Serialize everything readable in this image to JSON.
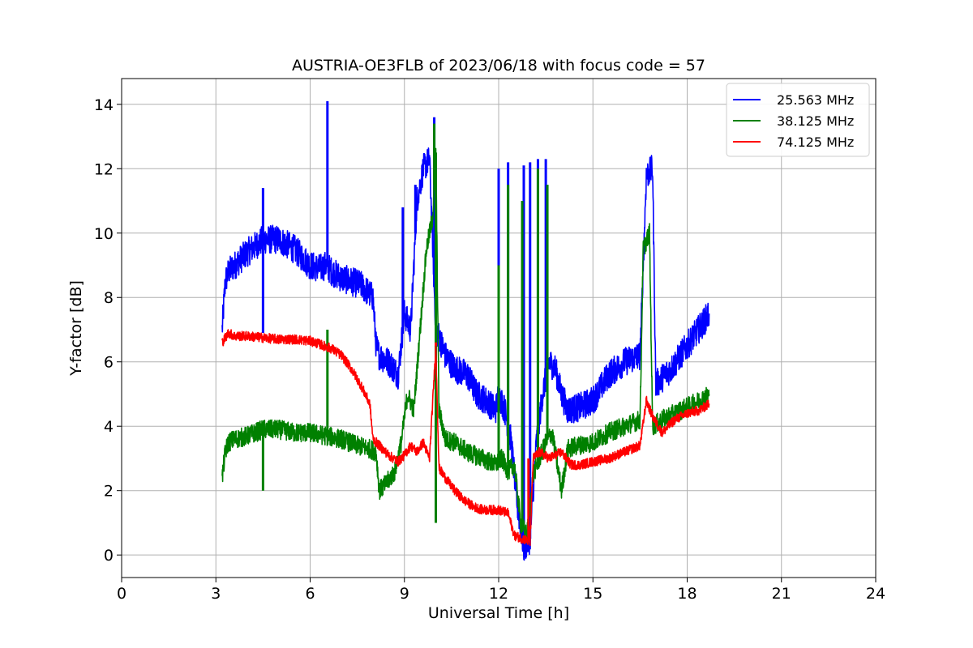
{
  "chart_data": {
    "type": "line",
    "title": "AUSTRIA-OE3FLB of 2023/06/18 with focus code = 57",
    "xlabel": "Universal Time [h]",
    "ylabel": "Y-factor [dB]",
    "xlim": [
      0,
      24
    ],
    "ylim": [
      -0.7,
      14.8
    ],
    "xticks": [
      0,
      3,
      6,
      9,
      12,
      15,
      18,
      21,
      24
    ],
    "yticks": [
      0,
      2,
      4,
      6,
      8,
      10,
      12,
      14
    ],
    "grid": true,
    "legend_position": "top-right",
    "series": [
      {
        "name": "25.563 MHz",
        "color": "#0000ff",
        "noise": 0.45,
        "x": [
          3.2,
          3.3,
          3.4,
          3.6,
          4.0,
          4.5,
          5.0,
          5.5,
          6.0,
          6.3,
          6.5,
          6.7,
          7.0,
          7.3,
          7.6,
          7.9,
          8.0,
          8.1,
          8.2,
          8.5,
          8.8,
          9.0,
          9.2,
          9.4,
          9.6,
          9.8,
          10.0,
          10.1,
          10.3,
          10.6,
          11.0,
          11.3,
          11.6,
          11.9,
          12.0,
          12.2,
          12.4,
          12.6,
          12.8,
          13.0,
          13.2,
          13.4,
          13.6,
          13.8,
          14.0,
          14.2,
          14.6,
          15.0,
          15.5,
          16.0,
          16.5,
          16.7,
          16.9,
          17.0,
          17.5,
          18.0,
          18.5,
          18.7
        ],
        "y": [
          7.0,
          8.5,
          8.8,
          9.0,
          9.4,
          9.8,
          9.8,
          9.5,
          9.0,
          8.9,
          9.0,
          8.8,
          8.6,
          8.5,
          8.4,
          8.1,
          8.0,
          6.5,
          6.2,
          6.0,
          5.6,
          7.5,
          7.0,
          11.0,
          12.0,
          12.3,
          7.0,
          6.8,
          6.2,
          5.8,
          5.6,
          5.0,
          4.8,
          4.5,
          5.0,
          4.5,
          3.5,
          1.5,
          0.2,
          0.5,
          3.5,
          5.0,
          6.0,
          5.8,
          5.0,
          4.5,
          4.6,
          4.8,
          5.6,
          6.0,
          6.2,
          11.8,
          12.0,
          5.3,
          5.8,
          6.5,
          7.2,
          7.5
        ],
        "spikes": [
          [
            4.5,
            11.4
          ],
          [
            6.55,
            14.1
          ],
          [
            8.95,
            10.8
          ],
          [
            9.35,
            11.5
          ],
          [
            9.95,
            13.6
          ],
          [
            12.0,
            12.0
          ],
          [
            12.3,
            12.2
          ],
          [
            12.8,
            12.1
          ],
          [
            13.0,
            12.2
          ],
          [
            13.25,
            12.3
          ],
          [
            13.5,
            12.3
          ],
          [
            4.5,
            6.9
          ]
        ]
      },
      {
        "name": "38.125 MHz",
        "color": "#008000",
        "noise": 0.3,
        "x": [
          3.2,
          3.3,
          3.4,
          3.6,
          4.0,
          4.5,
          5.0,
          5.5,
          6.0,
          6.5,
          7.0,
          7.5,
          7.9,
          8.1,
          8.2,
          8.4,
          8.7,
          8.9,
          9.1,
          9.3,
          9.5,
          9.7,
          9.9,
          10.0,
          10.1,
          10.3,
          10.6,
          11.0,
          11.5,
          11.9,
          12.1,
          12.3,
          12.5,
          12.7,
          12.9,
          13.1,
          13.3,
          13.5,
          13.7,
          14.0,
          14.2,
          14.5,
          15.0,
          15.5,
          16.0,
          16.5,
          16.6,
          16.8,
          16.9,
          17.2,
          17.6,
          18.0,
          18.4,
          18.7
        ],
        "y": [
          2.4,
          3.2,
          3.5,
          3.6,
          3.7,
          3.9,
          3.9,
          3.8,
          3.8,
          3.7,
          3.6,
          3.4,
          3.3,
          3.2,
          2.0,
          2.2,
          2.6,
          3.5,
          5.0,
          4.5,
          7.0,
          9.5,
          10.5,
          12.5,
          4.5,
          3.6,
          3.5,
          3.2,
          3.0,
          2.8,
          3.0,
          2.6,
          2.8,
          1.0,
          0.6,
          2.5,
          3.0,
          3.5,
          3.8,
          2.0,
          3.3,
          3.4,
          3.5,
          3.8,
          4.0,
          4.2,
          9.5,
          10.0,
          4.0,
          4.2,
          4.4,
          4.6,
          4.8,
          5.0
        ],
        "spikes": [
          [
            4.5,
            2.0
          ],
          [
            6.55,
            7.0
          ],
          [
            9.95,
            13.4
          ],
          [
            12.0,
            9.0
          ],
          [
            12.3,
            11.5
          ],
          [
            12.75,
            11.0
          ],
          [
            13.25,
            12.0
          ],
          [
            13.55,
            11.5
          ],
          [
            10.0,
            1.0
          ]
        ]
      },
      {
        "name": "74.125 MHz",
        "color": "#ff0000",
        "noise": 0.15,
        "x": [
          3.2,
          3.4,
          3.6,
          4.0,
          4.5,
          5.0,
          5.5,
          6.0,
          6.3,
          6.7,
          7.0,
          7.3,
          7.6,
          7.9,
          8.0,
          8.2,
          8.5,
          8.8,
          9.0,
          9.2,
          9.4,
          9.6,
          9.8,
          10.0,
          10.1,
          10.3,
          10.6,
          10.9,
          11.2,
          11.5,
          11.8,
          12.0,
          12.3,
          12.5,
          12.8,
          13.0,
          13.1,
          13.3,
          13.6,
          14.0,
          14.3,
          14.6,
          15.0,
          15.5,
          16.0,
          16.5,
          16.7,
          16.9,
          17.2,
          17.6,
          18.0,
          18.4,
          18.7
        ],
        "y": [
          6.6,
          6.9,
          6.8,
          6.8,
          6.75,
          6.7,
          6.7,
          6.65,
          6.55,
          6.4,
          6.2,
          5.8,
          5.3,
          4.7,
          3.6,
          3.4,
          3.1,
          2.9,
          3.1,
          3.4,
          3.2,
          3.5,
          3.0,
          6.5,
          2.7,
          2.4,
          2.0,
          1.7,
          1.5,
          1.4,
          1.4,
          1.4,
          1.3,
          0.6,
          0.5,
          0.4,
          3.0,
          3.2,
          3.0,
          3.2,
          2.8,
          2.8,
          2.9,
          3.0,
          3.2,
          3.4,
          4.8,
          4.3,
          3.8,
          4.2,
          4.4,
          4.5,
          4.7
        ],
        "spikes": [
          [
            10.0,
            6.6
          ],
          [
            12.95,
            3.0
          ]
        ]
      }
    ]
  }
}
